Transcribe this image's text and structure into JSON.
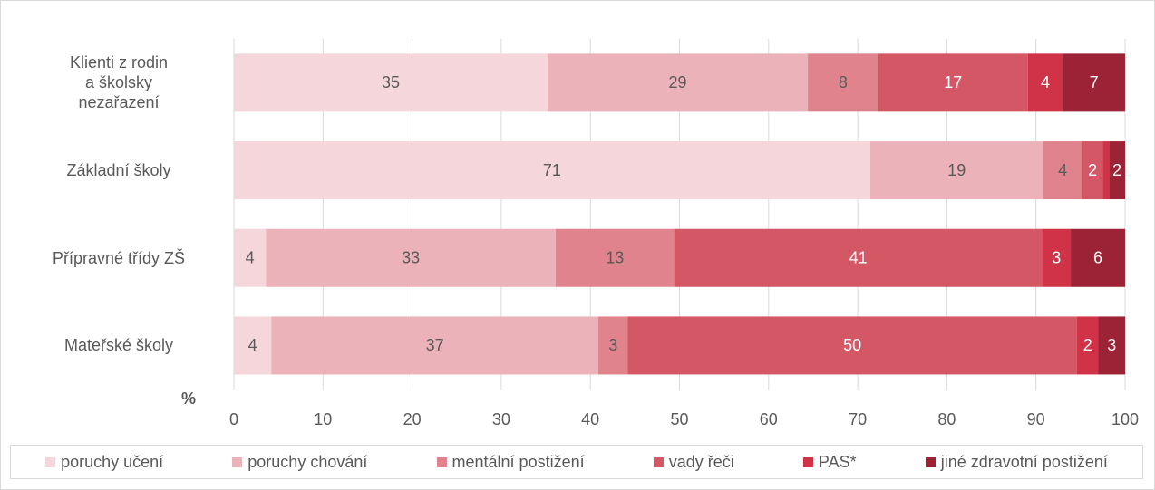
{
  "chart_data": {
    "type": "bar",
    "orientation": "horizontal",
    "stacked": true,
    "categories": [
      "Klienti z rodin\na školsky\nnezařazení",
      "Základní školy",
      "Přípravné třídy ZŠ",
      "Mateřské školy"
    ],
    "series": [
      {
        "name": "poruchy učení",
        "color": "#f5d6da",
        "values": [
          35.2,
          71.4,
          3.6,
          4.2
        ],
        "value_labels": [
          "35",
          "71",
          "4",
          "4"
        ]
      },
      {
        "name": "poruchy chování",
        "color": "#ebb3b9",
        "values": [
          29.2,
          19.4,
          32.5,
          36.7
        ],
        "value_labels": [
          "29",
          "19",
          "33",
          "37"
        ]
      },
      {
        "name": "mentální postižení",
        "color": "#e0838c",
        "values": [
          7.9,
          4.4,
          13.3,
          3.3
        ],
        "value_labels": [
          "8",
          "4",
          "13",
          "3"
        ]
      },
      {
        "name": "vady řeči",
        "color": "#d45766",
        "values": [
          16.8,
          2.3,
          41.3,
          50.4
        ],
        "value_labels": [
          "17",
          "2",
          "41",
          "50"
        ]
      },
      {
        "name": "PAS*",
        "color": "#d03347",
        "values": [
          3.9,
          0.7,
          3.2,
          2.4
        ],
        "value_labels": [
          "4",
          null,
          "3",
          "2"
        ]
      },
      {
        "name": "jiné zdravotní postižení",
        "color": "#9b2335",
        "values": [
          7.0,
          1.8,
          6.1,
          3.0
        ],
        "value_labels": [
          "7",
          "2",
          "6",
          "3"
        ]
      }
    ],
    "xlabel": "%",
    "xlim": [
      0,
      100
    ],
    "xticks": [
      0,
      10,
      20,
      30,
      40,
      50,
      60,
      70,
      80,
      90,
      100
    ],
    "grid": true,
    "legend": "bottom"
  }
}
